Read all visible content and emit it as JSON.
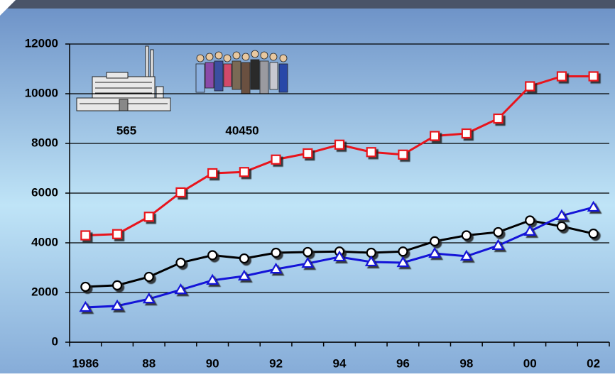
{
  "chart_data": {
    "type": "line",
    "categories": [
      "1986",
      null,
      "88",
      null,
      "90",
      null,
      "92",
      null,
      "94",
      null,
      "96",
      null,
      "98",
      null,
      "00",
      null,
      "02"
    ],
    "series": [
      {
        "color": "#e8141c",
        "marker": "square",
        "values": [
          4300,
          4350,
          5050,
          6030,
          6800,
          6850,
          7350,
          7600,
          7950,
          7650,
          7550,
          8300,
          8400,
          9000,
          10300,
          10700,
          10700
        ]
      },
      {
        "color": "#000000",
        "marker": "circle",
        "values": [
          2230,
          2290,
          2630,
          3200,
          3500,
          3370,
          3600,
          3630,
          3650,
          3600,
          3650,
          4060,
          4300,
          4430,
          4900,
          4660,
          4370
        ]
      },
      {
        "color": "#1414d8",
        "marker": "triangle",
        "values": [
          1400,
          1460,
          1740,
          2110,
          2490,
          2660,
          2940,
          3170,
          3430,
          3230,
          3200,
          3570,
          3460,
          3890,
          4460,
          5090,
          5430
        ]
      }
    ],
    "ylim": [
      0,
      12000
    ],
    "yticks": [
      0,
      2000,
      4000,
      6000,
      8000,
      10000,
      12000
    ],
    "grid": true,
    "annotations": [
      "565",
      "40450"
    ]
  }
}
